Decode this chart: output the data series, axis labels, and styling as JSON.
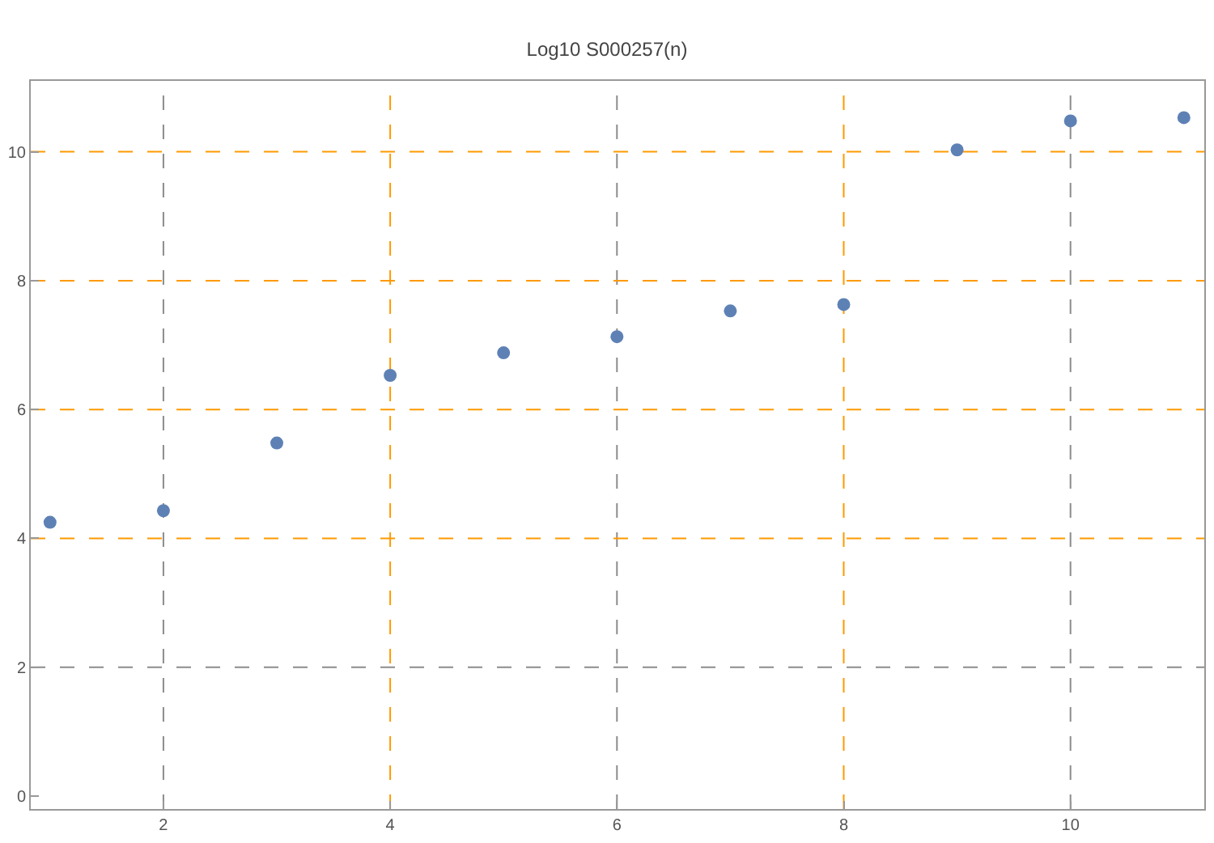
{
  "chart_data": {
    "type": "scatter",
    "title": "Log10 S000257(n)",
    "x": [
      1,
      2,
      3,
      4,
      5,
      6,
      7,
      8,
      9,
      10,
      11
    ],
    "series": [
      {
        "color": "#5e81b5",
        "values": [
          4.25,
          4.43,
          5.48,
          6.53,
          6.88,
          7.13,
          7.53,
          7.63,
          10.03,
          10.48,
          10.53
        ]
      }
    ],
    "xlim": [
      0.83,
      11.18
    ],
    "ylim": [
      -0.2,
      11.1
    ],
    "xticks": [
      2,
      4,
      6,
      8,
      10
    ],
    "yticks": [
      0,
      2,
      4,
      6,
      8,
      10
    ],
    "marker": "circle",
    "ref_lines": [
      {
        "axis": "x",
        "value": 2,
        "color": "#8c8c8c",
        "line_style": "dashed"
      },
      {
        "axis": "x",
        "value": 6,
        "color": "#8c8c8c",
        "line_style": "dashed"
      },
      {
        "axis": "x",
        "value": 10,
        "color": "#8c8c8c",
        "line_style": "dashed"
      },
      {
        "axis": "y",
        "value": 2,
        "color": "#8c8c8c",
        "line_style": "dashed"
      },
      {
        "axis": "x",
        "value": 4,
        "color": "#ff9a00",
        "line_style": "dashed"
      },
      {
        "axis": "x",
        "value": 8,
        "color": "#ff9a00",
        "line_style": "dashed"
      },
      {
        "axis": "y",
        "value": 4,
        "color": "#ff9a00",
        "line_style": "dashed"
      },
      {
        "axis": "y",
        "value": 6,
        "color": "#ff9a00",
        "line_style": "dashed"
      },
      {
        "axis": "y",
        "value": 8,
        "color": "#ff9a00",
        "line_style": "dashed"
      },
      {
        "axis": "y",
        "value": 10,
        "color": "#ff9a00",
        "line_style": "dashed"
      }
    ]
  }
}
